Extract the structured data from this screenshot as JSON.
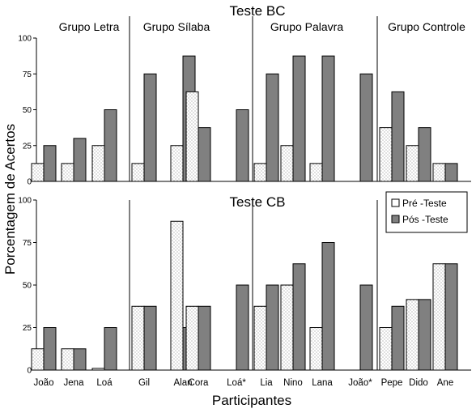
{
  "chart_data": [
    {
      "type": "bar",
      "title": "Teste BC",
      "groups": [
        {
          "label": "Grupo Letra",
          "categories": [
            "João",
            "Jena",
            "Loá"
          ]
        },
        {
          "label": "Grupo Sílaba",
          "categories": [
            "Gil",
            "Alan",
            "Cora",
            "Loá*"
          ]
        },
        {
          "label": "Grupo Palavra",
          "categories": [
            "Lia",
            "Nino",
            "Lana",
            "João*"
          ]
        },
        {
          "label": "Grupo Controle",
          "categories": [
            "Pepe",
            "Dido",
            "Ane"
          ]
        }
      ],
      "categories": [
        "João",
        "Jena",
        "Loá",
        "Gil",
        "Alan",
        "Cora",
        "Loá*",
        "Lia",
        "Nino",
        "Lana",
        "João*",
        "Pepe",
        "Dido",
        "Ane"
      ],
      "series": [
        {
          "name": "Pré -Teste",
          "values": [
            12.5,
            12.5,
            25,
            12.5,
            25,
            62.5,
            0,
            12.5,
            25,
            12.5,
            0,
            37.5,
            25,
            12.5
          ]
        },
        {
          "name": "Pós -Teste",
          "values": [
            25,
            30,
            50,
            75,
            87.5,
            37.5,
            50,
            75,
            87.5,
            87.5,
            75,
            62.5,
            37.5,
            12.5
          ]
        }
      ],
      "ylim": [
        0,
        100
      ],
      "yticks": [
        0,
        25,
        50,
        75,
        100
      ],
      "ylabel": "Porcentagem de Acertos",
      "xlabel": "Participantes",
      "legend": "none",
      "grid": false
    },
    {
      "type": "bar",
      "title": "Teste CB",
      "categories": [
        "João",
        "Jena",
        "Loá",
        "Gil",
        "Alan",
        "Cora",
        "Loá*",
        "Lia",
        "Nino",
        "Lana",
        "João*",
        "Pepe",
        "Dido",
        "Ane"
      ],
      "series": [
        {
          "name": "Pré -Teste",
          "values": [
            12.5,
            12.5,
            1,
            37.5,
            87.5,
            37.5,
            0,
            37.5,
            50,
            25,
            0,
            25,
            41.5,
            62.5
          ]
        },
        {
          "name": "Pós -Teste",
          "values": [
            25,
            12.5,
            25,
            37.5,
            25,
            37.5,
            50,
            50,
            62.5,
            75,
            50,
            37.5,
            41.5,
            62.5
          ]
        }
      ],
      "ylim": [
        0,
        100
      ],
      "yticks": [
        0,
        25,
        50,
        75,
        100
      ],
      "ylabel": "Porcentagem de Acertos",
      "xlabel": "Participantes",
      "legend": "top-right",
      "grid": false
    }
  ],
  "colors": {
    "pre_fill": "#ffffff",
    "pre_dots": "#6a6a6a",
    "post_fill": "#808080",
    "axis": "#000000"
  }
}
